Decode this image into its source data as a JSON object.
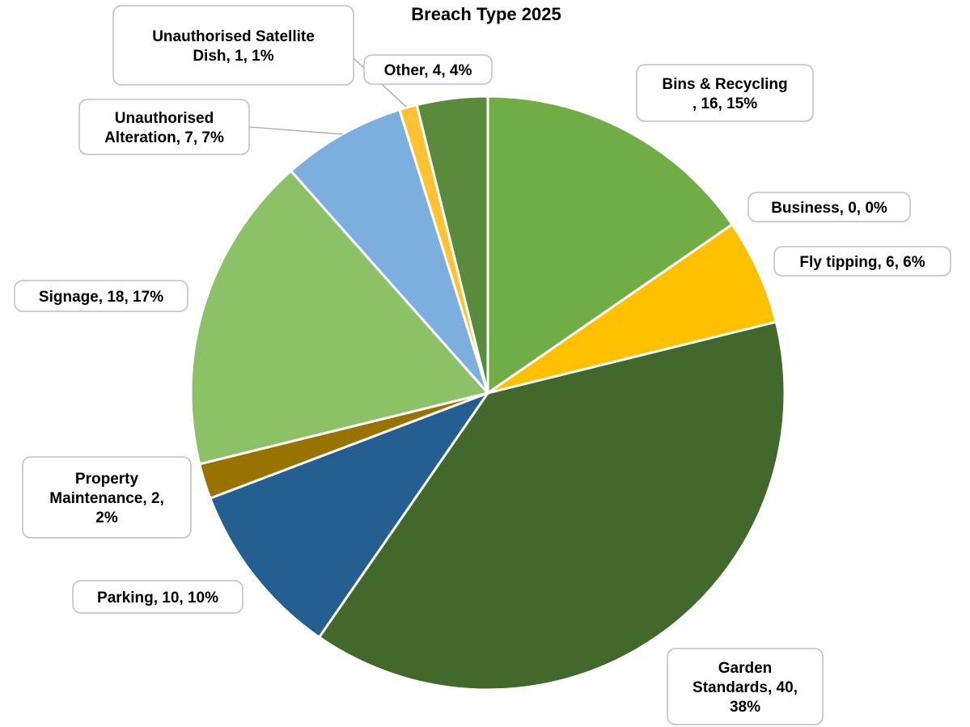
{
  "chart_data": {
    "type": "pie",
    "title": "Breach Type 2025",
    "slices": [
      {
        "name": "Bins & Recycling",
        "value": 16,
        "percent": "15%",
        "color": "#70ad47",
        "label": [
          "Bins & Recycling",
          ", 16, 15%"
        ]
      },
      {
        "name": "Business",
        "value": 0,
        "percent": "0%",
        "color": "#5b9bd5",
        "label": [
          "Business, 0, 0%"
        ]
      },
      {
        "name": "Fly tipping",
        "value": 6,
        "percent": "6%",
        "color": "#ffc000",
        "label": [
          "Fly tipping, 6, 6%"
        ]
      },
      {
        "name": "Garden Standards",
        "value": 40,
        "percent": "38%",
        "color": "#43682b",
        "label": [
          "Garden",
          "Standards, 40,",
          "38%"
        ]
      },
      {
        "name": "Parking",
        "value": 10,
        "percent": "10%",
        "color": "#255e91",
        "label": [
          "Parking, 10, 10%"
        ]
      },
      {
        "name": "Property Maintenance",
        "value": 2,
        "percent": "2%",
        "color": "#997300",
        "label": [
          "Property",
          "Maintenance, 2,",
          "2%"
        ]
      },
      {
        "name": "Signage",
        "value": 18,
        "percent": "17%",
        "color": "#8cc168",
        "label": [
          "Signage, 18, 17%"
        ]
      },
      {
        "name": "Unauthorised Alteration",
        "value": 7,
        "percent": "7%",
        "color": "#7cafdd",
        "label": [
          "Unauthorised",
          "Alteration, 7, 7%"
        ]
      },
      {
        "name": "Unauthorised Satellite Dish",
        "value": 1,
        "percent": "1%",
        "color": "#ffc232",
        "label": [
          "Unauthorised Satellite",
          "Dish, 1, 1%"
        ]
      },
      {
        "name": "Other",
        "value": 4,
        "percent": "4%",
        "color": "#5a8a3c",
        "label": [
          "Other, 4, 4%"
        ]
      }
    ]
  }
}
